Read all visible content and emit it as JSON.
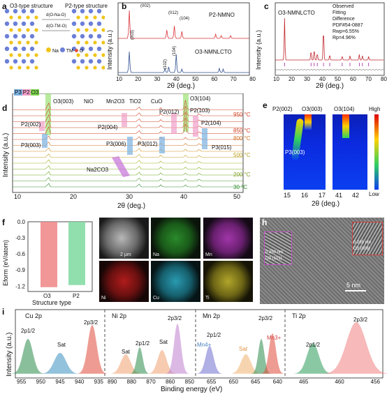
{
  "panels": {
    "a": {
      "letter": "a",
      "o3_title": "O3-type structure",
      "p2_title": "P2-type structure",
      "d1": "d(O-Na-O)",
      "d2": "d(O-TM-O)",
      "legend": [
        "Na",
        "TM",
        "O"
      ],
      "colors": {
        "Na": "#f0c419",
        "TM": "#6b7fd7",
        "O": "#e0523b"
      }
    },
    "b": {
      "letter": "b",
      "ylabel": "Intensity (a.u.)",
      "xlabel": "2θ (deg.)",
      "top_series": "P2-NMNO",
      "bottom_series": "O3-NMNLCTO",
      "top_peaks": [
        "(002)",
        "(012)",
        "(104)"
      ],
      "bottom_peaks": [
        "(003)",
        "(104)",
        "(102)"
      ],
      "xticks": [
        "10",
        "20",
        "30",
        "40",
        "50",
        "60",
        "70",
        "80"
      ],
      "top_color": "#d8343a",
      "bottom_color": "#2f4f8f"
    },
    "c": {
      "letter": "c",
      "title": "O3-NMNLCTO",
      "legend": [
        "Observed",
        "Fitting",
        "Difference",
        "PDF#54-0887"
      ],
      "rwp": "Rwp=6.55%",
      "rp": "Rp=4.96%",
      "ylabel": "Intensity (a.u.)",
      "xlabel": "2θ (deg.)",
      "xticks": [
        "10",
        "20",
        "30",
        "40",
        "50",
        "60",
        "70",
        "80"
      ]
    },
    "d": {
      "letter": "d",
      "ylabel": "Intensity (a.u.)",
      "xlabel": "2θ (deg.)",
      "phase_labels": [
        "P3",
        "P2",
        "O3"
      ],
      "markers": [
        "O3(003)",
        "NiO",
        "Mn2O3",
        "TiO2",
        "CuO",
        "O3(104)"
      ],
      "peak_labels": [
        "P2(002)",
        "P3(003)",
        "P2(004)",
        "P3(006)",
        "P3(012)",
        "P2(012)",
        "P2(103)",
        "P2(104)",
        "P3(015)",
        "Na2CO3"
      ],
      "temps": [
        "950 °C",
        "850 °C",
        "800 °C",
        "500 °C",
        "200 °C",
        "30 °C"
      ],
      "xticks": [
        "10",
        "20",
        "30",
        "40",
        "50"
      ]
    },
    "e": {
      "letter": "e",
      "top_labels": [
        "P2(002)",
        "O3(003)",
        "O3(104)"
      ],
      "inner_label": "P3(003)",
      "high": "High",
      "low": "Low",
      "xticks": [
        "15",
        "16",
        "17",
        "41",
        "42"
      ],
      "xlabel": "2θ (deg.)"
    },
    "f": {
      "letter": "f",
      "ylabel": "Eform (eV/atom)",
      "xlabel": "Structure type",
      "yticks": [
        "-1.2",
        "-0.9",
        "-0.6",
        "-0.3",
        "0.0"
      ],
      "ylim": [
        -1.3,
        0.0
      ]
    },
    "g": {
      "letter": "g",
      "scale": "2 μm",
      "maps": [
        "Na",
        "Mn",
        "Ni",
        "Cu",
        "Ti"
      ],
      "map_colors": {
        "Na": "#2a8a2a",
        "Mn": "#a035a8",
        "Ni": "#b01c1c",
        "Cu": "#2a9ab0",
        "Ti": "#b0a52a"
      }
    },
    "h": {
      "letter": "h",
      "spacing1": "0.250 nm",
      "plane1": "O3 (101)",
      "spacing2": "0.265 nm",
      "plane2": "O3 (006)",
      "scale": "5 nm"
    },
    "i": {
      "letter": "i",
      "ylabel": "Intensity (a.u.)",
      "xlabel": "Binding energy (eV)",
      "sections": [
        {
          "title": "Cu 2p",
          "peaks": [
            "2p1/2",
            "Sat",
            "2p3/2"
          ],
          "ticks": [
            "955",
            "950",
            "945",
            "940",
            "935"
          ]
        },
        {
          "title": "Ni 2p",
          "peaks": [
            "Sat",
            "2p1/2",
            "Sat",
            "2p3/2"
          ],
          "ticks": [
            "890",
            "880",
            "870",
            "860",
            "850"
          ]
        },
        {
          "title": "Mn 2p",
          "peaks": [
            "Mn4+",
            "2p1/2",
            "Sat",
            "Mn3+",
            "2p3/2"
          ],
          "ticks": [
            "655",
            "650",
            "645",
            "640"
          ]
        },
        {
          "title": "Ti 2p",
          "peaks": [
            "2p1/2",
            "2p3/2"
          ],
          "ticks": [
            "465",
            "460",
            "456"
          ]
        }
      ]
    }
  },
  "chart_data": [
    {
      "type": "bar",
      "panel": "f",
      "categories": [
        "O3",
        "P2"
      ],
      "values": [
        -1.22,
        -1.18
      ],
      "ylabel": "Eform (eV/atom)",
      "xlabel": "Structure type",
      "ylim": [
        -1.3,
        0.0
      ]
    }
  ]
}
